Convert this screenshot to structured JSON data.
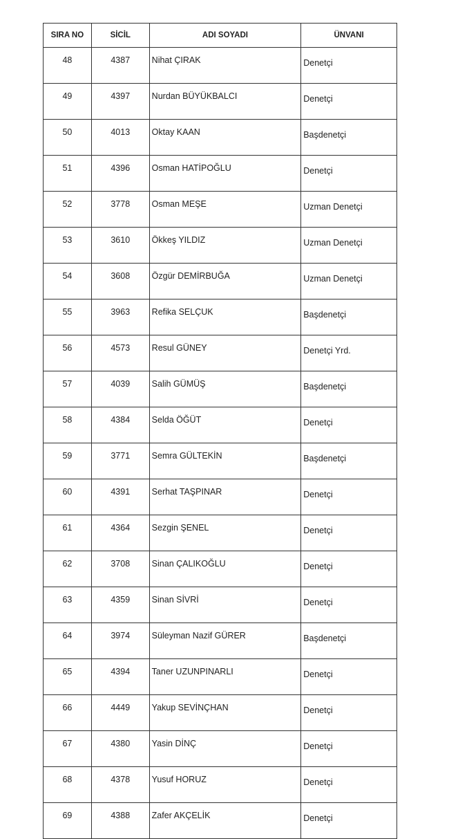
{
  "headers": {
    "sira_no": "SIRA NO",
    "sicil": "SİCİL",
    "adi_soyadi": "ADI SOYADI",
    "unvani": "ÜNVANI"
  },
  "rows": [
    {
      "sira_no": "48",
      "sicil": "4387",
      "adi_soyadi": "Nihat ÇIRAK",
      "unvani": "Denetçi"
    },
    {
      "sira_no": "49",
      "sicil": "4397",
      "adi_soyadi": "Nurdan BÜYÜKBALCI",
      "unvani": "Denetçi"
    },
    {
      "sira_no": "50",
      "sicil": "4013",
      "adi_soyadi": "Oktay KAAN",
      "unvani": "Başdenetçi"
    },
    {
      "sira_no": "51",
      "sicil": "4396",
      "adi_soyadi": "Osman HATİPOĞLU",
      "unvani": "Denetçi"
    },
    {
      "sira_no": "52",
      "sicil": "3778",
      "adi_soyadi": "Osman MEŞE",
      "unvani": "Uzman Denetçi"
    },
    {
      "sira_no": "53",
      "sicil": "3610",
      "adi_soyadi": "Ökkeş YILDIZ",
      "unvani": "Uzman Denetçi"
    },
    {
      "sira_no": "54",
      "sicil": "3608",
      "adi_soyadi": "Özgür DEMİRBUĞA",
      "unvani": "Uzman Denetçi"
    },
    {
      "sira_no": "55",
      "sicil": "3963",
      "adi_soyadi": "Refika SELÇUK",
      "unvani": "Başdenetçi"
    },
    {
      "sira_no": "56",
      "sicil": "4573",
      "adi_soyadi": "Resul GÜNEY",
      "unvani": "Denetçi Yrd."
    },
    {
      "sira_no": "57",
      "sicil": "4039",
      "adi_soyadi": "Salih GÜMÜŞ",
      "unvani": "Başdenetçi"
    },
    {
      "sira_no": "58",
      "sicil": "4384",
      "adi_soyadi": "Selda ÖĞÜT",
      "unvani": "Denetçi"
    },
    {
      "sira_no": "59",
      "sicil": "3771",
      "adi_soyadi": "Semra GÜLTEKİN",
      "unvani": "Başdenetçi"
    },
    {
      "sira_no": "60",
      "sicil": "4391",
      "adi_soyadi": "Serhat TAŞPINAR",
      "unvani": "Denetçi"
    },
    {
      "sira_no": "61",
      "sicil": "4364",
      "adi_soyadi": "Sezgin ŞENEL",
      "unvani": "Denetçi"
    },
    {
      "sira_no": "62",
      "sicil": "3708",
      "adi_soyadi": "Sinan ÇALIKOĞLU",
      "unvani": "Denetçi"
    },
    {
      "sira_no": "63",
      "sicil": "4359",
      "adi_soyadi": "Sinan SİVRİ",
      "unvani": "Denetçi"
    },
    {
      "sira_no": "64",
      "sicil": "3974",
      "adi_soyadi": "Süleyman Nazif GÜRER",
      "unvani": "Başdenetçi"
    },
    {
      "sira_no": "65",
      "sicil": "4394",
      "adi_soyadi": "Taner UZUNPINARLI",
      "unvani": "Denetçi"
    },
    {
      "sira_no": "66",
      "sicil": "4449",
      "adi_soyadi": "Yakup SEVİNÇHAN",
      "unvani": "Denetçi"
    },
    {
      "sira_no": "67",
      "sicil": "4380",
      "adi_soyadi": "Yasin DİNÇ",
      "unvani": "Denetçi"
    },
    {
      "sira_no": "68",
      "sicil": "4378",
      "adi_soyadi": "Yusuf HORUZ",
      "unvani": "Denetçi"
    },
    {
      "sira_no": "69",
      "sicil": "4388",
      "adi_soyadi": "Zafer AKÇELİK",
      "unvani": "Denetçi"
    }
  ]
}
